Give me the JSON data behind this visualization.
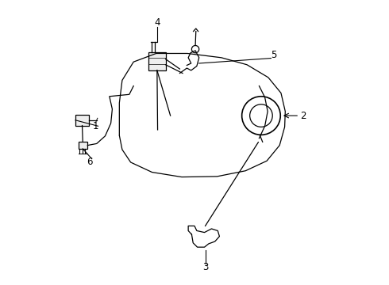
{
  "background_color": "#ffffff",
  "line_color": "#000000",
  "label_color": "#000000",
  "fig_width": 4.9,
  "fig_height": 3.6,
  "dpi": 100
}
